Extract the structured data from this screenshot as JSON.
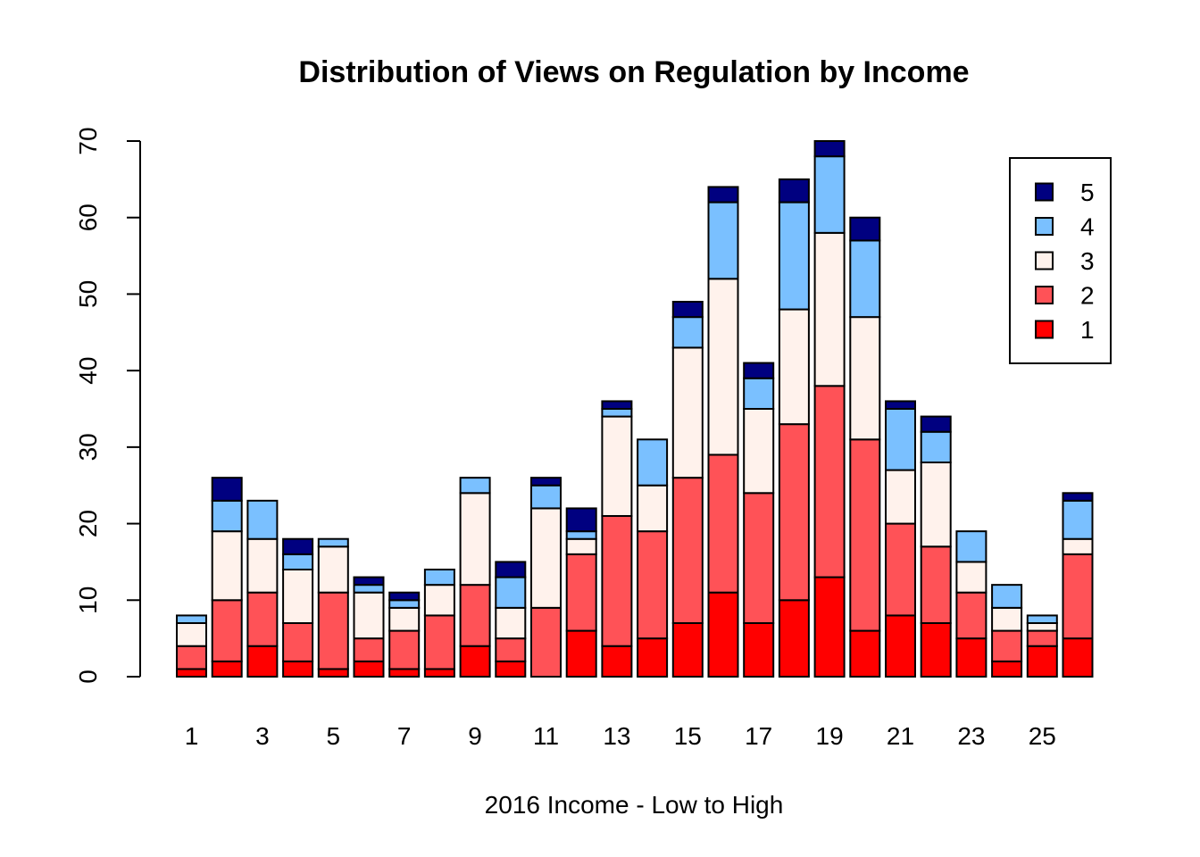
{
  "chart_data": {
    "type": "bar",
    "stacked": true,
    "title": "Distribution of Views on Regulation by Income",
    "xlabel": "2016 Income - Low to High",
    "ylabel": "",
    "ylim": [
      0,
      70
    ],
    "yticks": [
      0,
      10,
      20,
      30,
      40,
      50,
      60,
      70
    ],
    "xtick_labels": [
      "1",
      "3",
      "5",
      "7",
      "9",
      "11",
      "13",
      "15",
      "17",
      "19",
      "21",
      "23",
      "25"
    ],
    "categories": [
      "1",
      "2",
      "3",
      "4",
      "5",
      "6",
      "7",
      "8",
      "9",
      "10",
      "11",
      "12",
      "13",
      "14",
      "15",
      "16",
      "17",
      "18",
      "19",
      "20",
      "21",
      "22",
      "23",
      "24",
      "25",
      "26"
    ],
    "legend_position": "top-right",
    "series": [
      {
        "name": "1",
        "color": "#FF0000",
        "values": [
          1,
          2,
          4,
          2,
          1,
          2,
          1,
          1,
          4,
          2,
          0,
          6,
          4,
          5,
          7,
          11,
          7,
          10,
          13,
          6,
          8,
          7,
          5,
          2,
          4,
          5
        ]
      },
      {
        "name": "2",
        "color": "#FF5257",
        "values": [
          3,
          8,
          7,
          5,
          10,
          3,
          5,
          7,
          8,
          3,
          9,
          10,
          17,
          14,
          19,
          18,
          17,
          23,
          25,
          25,
          12,
          10,
          6,
          4,
          2,
          11
        ]
      },
      {
        "name": "3",
        "color": "#FFF2EC",
        "values": [
          3,
          9,
          7,
          7,
          6,
          6,
          3,
          4,
          12,
          4,
          13,
          2,
          13,
          6,
          17,
          23,
          11,
          15,
          20,
          16,
          7,
          11,
          4,
          3,
          1,
          2
        ]
      },
      {
        "name": "4",
        "color": "#7AC0FF",
        "values": [
          1,
          4,
          5,
          2,
          1,
          1,
          1,
          2,
          2,
          4,
          3,
          1,
          1,
          6,
          4,
          10,
          4,
          14,
          10,
          10,
          8,
          4,
          4,
          3,
          1,
          5
        ]
      },
      {
        "name": "5",
        "color": "#000080",
        "values": [
          0,
          3,
          0,
          2,
          0,
          1,
          1,
          0,
          0,
          2,
          1,
          3,
          1,
          0,
          2,
          2,
          2,
          3,
          2,
          3,
          1,
          2,
          0,
          0,
          0,
          1
        ]
      }
    ]
  }
}
